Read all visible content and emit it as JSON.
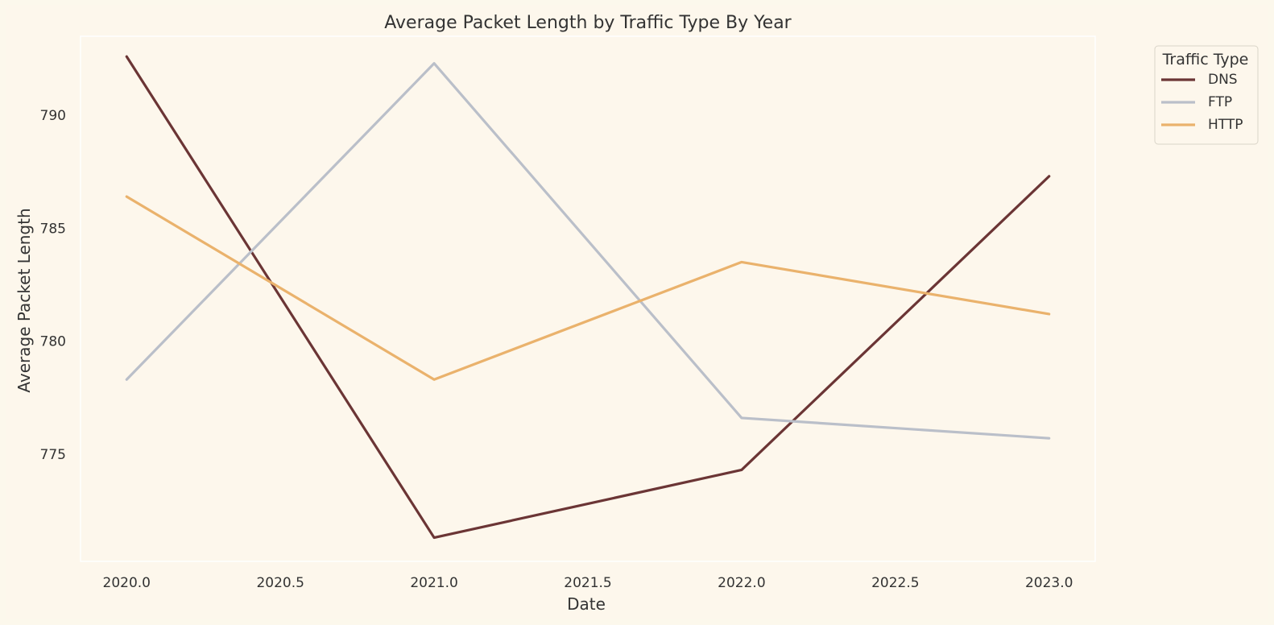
{
  "chart_data": {
    "type": "line",
    "title": "Average Packet Length by Traffic Type By Year",
    "xlabel": "Date",
    "ylabel": "Average Packet Length",
    "x": [
      2020,
      2021,
      2022,
      2023
    ],
    "x_ticks": [
      "2020.0",
      "2020.5",
      "2021.0",
      "2021.5",
      "2022.0",
      "2022.5",
      "2023.0"
    ],
    "y_ticks": [
      "775",
      "780",
      "785",
      "790"
    ],
    "xlim": [
      2019.85,
      2023.15
    ],
    "ylim": [
      770.25,
      793.5
    ],
    "series": [
      {
        "name": "DNS",
        "color": "#6b3535",
        "values": [
          792.6,
          771.3,
          774.3,
          787.3
        ]
      },
      {
        "name": "FTP",
        "color": "#babfc9",
        "values": [
          778.3,
          792.3,
          776.6,
          775.7
        ]
      },
      {
        "name": "HTTP",
        "color": "#eab26c",
        "values": [
          786.4,
          778.3,
          783.5,
          781.2
        ]
      }
    ],
    "legend": {
      "title": "Traffic Type",
      "position": "outside-top-right"
    },
    "grid": false,
    "colors": {
      "figure_bg": "#fcf8ec",
      "axes_bg": "#fdf7ec",
      "frame": "#ffffff"
    }
  }
}
